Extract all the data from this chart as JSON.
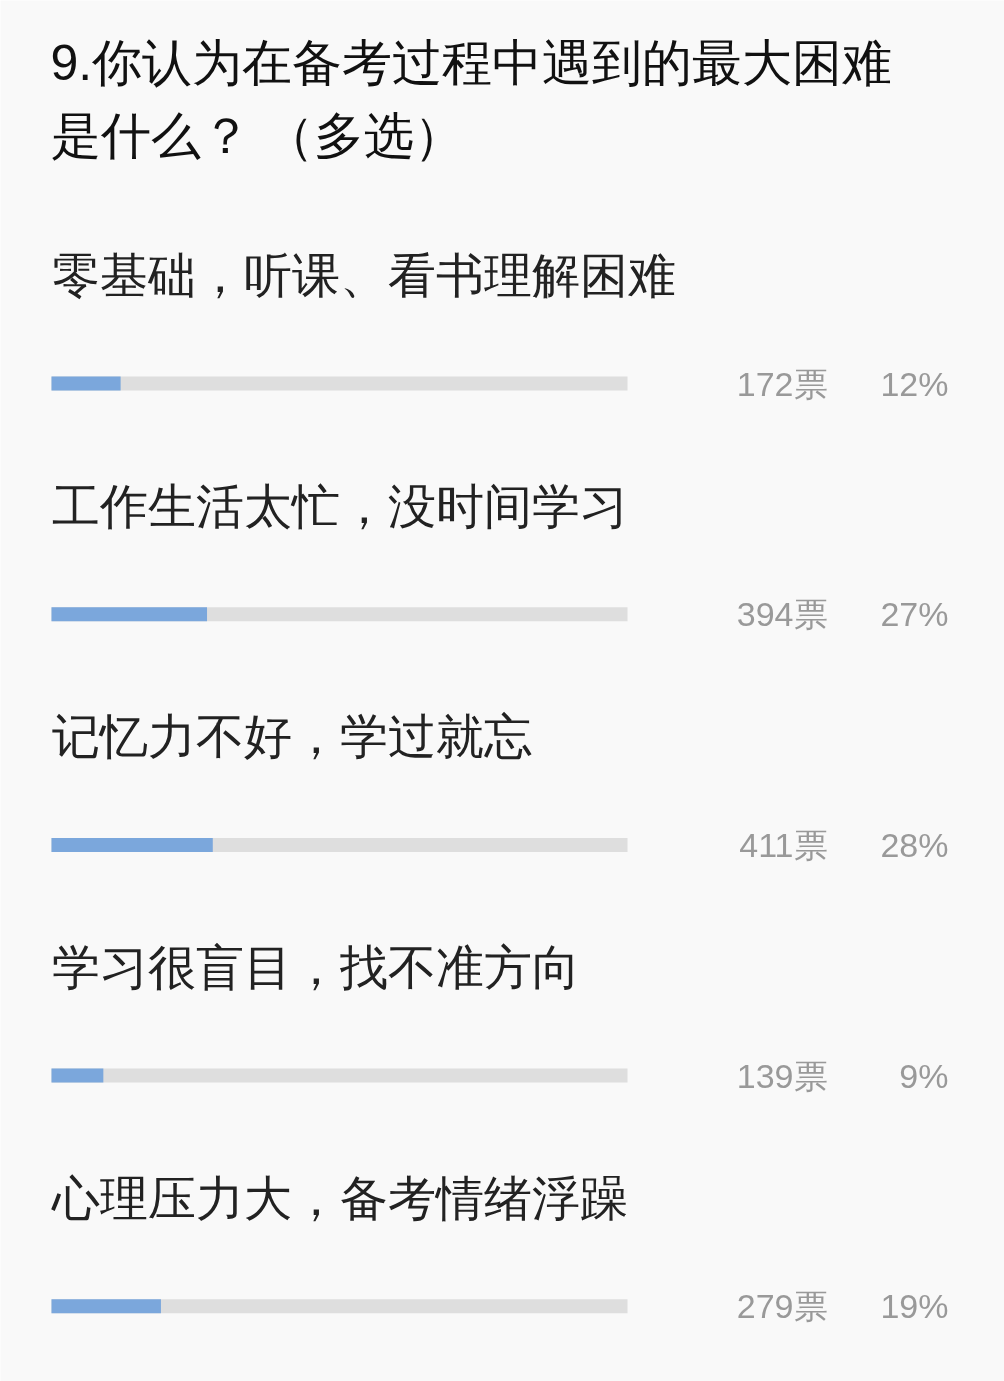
{
  "chart_data": {
    "type": "bar",
    "orientation": "horizontal",
    "title": "9.你认为在备考过程中遇到的最大困难是什么？ （多选）",
    "categories": [
      "零基础，听课、看书理解困难",
      "工作生活太忙，没时间学习",
      "记忆力不好，学过就忘",
      "学习很盲目，找不准方向",
      "心理压力大，备考情绪浮躁"
    ],
    "values": [
      12,
      27,
      28,
      9,
      19
    ],
    "color": "#7ba7dc",
    "value_labels": [
      "12%",
      "27%",
      "28%",
      "9%",
      "19%"
    ],
    "annotations": [
      "172票",
      "394票",
      "411票",
      "139票",
      "279票"
    ],
    "xlim": [
      0,
      100
    ],
    "grid": "y",
    "tick_labels": false
  }
}
